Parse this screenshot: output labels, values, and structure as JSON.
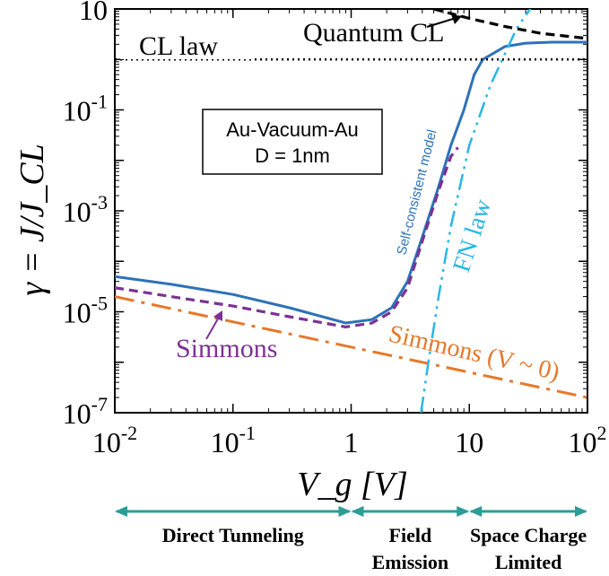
{
  "chart_data": {
    "type": "line",
    "xlabel": "V_g [V]",
    "ylabel": "γ = J/J_CL",
    "xscale": "log",
    "yscale": "log",
    "xlim": [
      0.01,
      100
    ],
    "ylim": [
      1e-07,
      10
    ],
    "x_ticks": [
      {
        "value": 0.01,
        "base": "10",
        "exp": "-2"
      },
      {
        "value": 0.1,
        "base": "10",
        "exp": "-1"
      },
      {
        "value": 1,
        "base": "1",
        "exp": ""
      },
      {
        "value": 10,
        "base": "10",
        "exp": ""
      },
      {
        "value": 100,
        "base": "10",
        "exp": "2"
      }
    ],
    "y_ticks": [
      {
        "value": 1e-07,
        "base": "10",
        "exp": "-7"
      },
      {
        "value": 1e-05,
        "base": "10",
        "exp": "-5"
      },
      {
        "value": 0.001,
        "base": "10",
        "exp": "-3"
      },
      {
        "value": 0.1,
        "base": "10",
        "exp": "-1"
      },
      {
        "value": 10,
        "base": "10",
        "exp": ""
      }
    ],
    "legend_box": [
      "Au-Vacuum-Au",
      "D = 1nm"
    ],
    "series": [
      {
        "name": "Self-consistent model",
        "color": "#2d72b8",
        "dash": "solid",
        "x": [
          0.01,
          0.03,
          0.1,
          0.3,
          0.9,
          1.5,
          2.2,
          3,
          4,
          5.5,
          7,
          9,
          11,
          13,
          20,
          30,
          50,
          100
        ],
        "y": [
          5e-05,
          3.5e-05,
          2.2e-05,
          1.2e-05,
          6e-06,
          7e-06,
          1.2e-05,
          4e-05,
          0.0003,
          0.003,
          0.02,
          0.1,
          0.5,
          1.0,
          1.8,
          2.1,
          2.2,
          2.2
        ]
      },
      {
        "name": "Simmons",
        "color": "#7b3294",
        "dash": "dashed",
        "x": [
          0.01,
          0.03,
          0.1,
          0.3,
          0.9,
          1.5,
          2.2,
          3,
          4,
          5.5,
          7,
          8
        ],
        "y": [
          3e-05,
          2e-05,
          1.3e-05,
          8e-06,
          5e-06,
          6e-06,
          1e-05,
          3e-05,
          0.00025,
          0.0025,
          0.012,
          0.018
        ]
      },
      {
        "name": "Simmons (V ~ 0)",
        "color": "#e6782a",
        "dash": "dashdot",
        "x": [
          0.01,
          100
        ],
        "y": [
          2e-05,
          2e-07
        ]
      },
      {
        "name": "FN law",
        "color": "#29b6e6",
        "dash": "dashdotdot",
        "x": [
          3.9,
          4.5,
          5.5,
          7,
          10,
          15,
          25,
          40
        ],
        "y": [
          1e-07,
          1e-06,
          2e-05,
          0.0005,
          0.02,
          0.3,
          4,
          20
        ]
      },
      {
        "name": "CL law",
        "color": "#000000",
        "dash": "dotted",
        "x": [
          0.01,
          100
        ],
        "y": [
          1,
          1
        ]
      },
      {
        "name": "Quantum CL",
        "color": "#000000",
        "dash": "dashed",
        "x": [
          5,
          10,
          20,
          40,
          100
        ],
        "y": [
          10,
          6.5,
          4.5,
          3.3,
          2.6
        ]
      }
    ],
    "annotations": {
      "cl_law": "CL law",
      "quantum_cl": "Quantum CL",
      "self_consistent": "Self-consistent model",
      "fn_law": "FN law",
      "simmons": "Simmons",
      "simmons_v0": "Simmons (V ~ 0)"
    },
    "regions": [
      {
        "lines": [
          "Direct Tunneling"
        ],
        "from": 0.01,
        "to": 1
      },
      {
        "lines": [
          "Field",
          "Emission"
        ],
        "from": 1,
        "to": 10
      },
      {
        "lines": [
          "Space Charge",
          "Limited"
        ],
        "from": 10,
        "to": 100
      }
    ],
    "region_arrow_color": "#2a9d96"
  }
}
